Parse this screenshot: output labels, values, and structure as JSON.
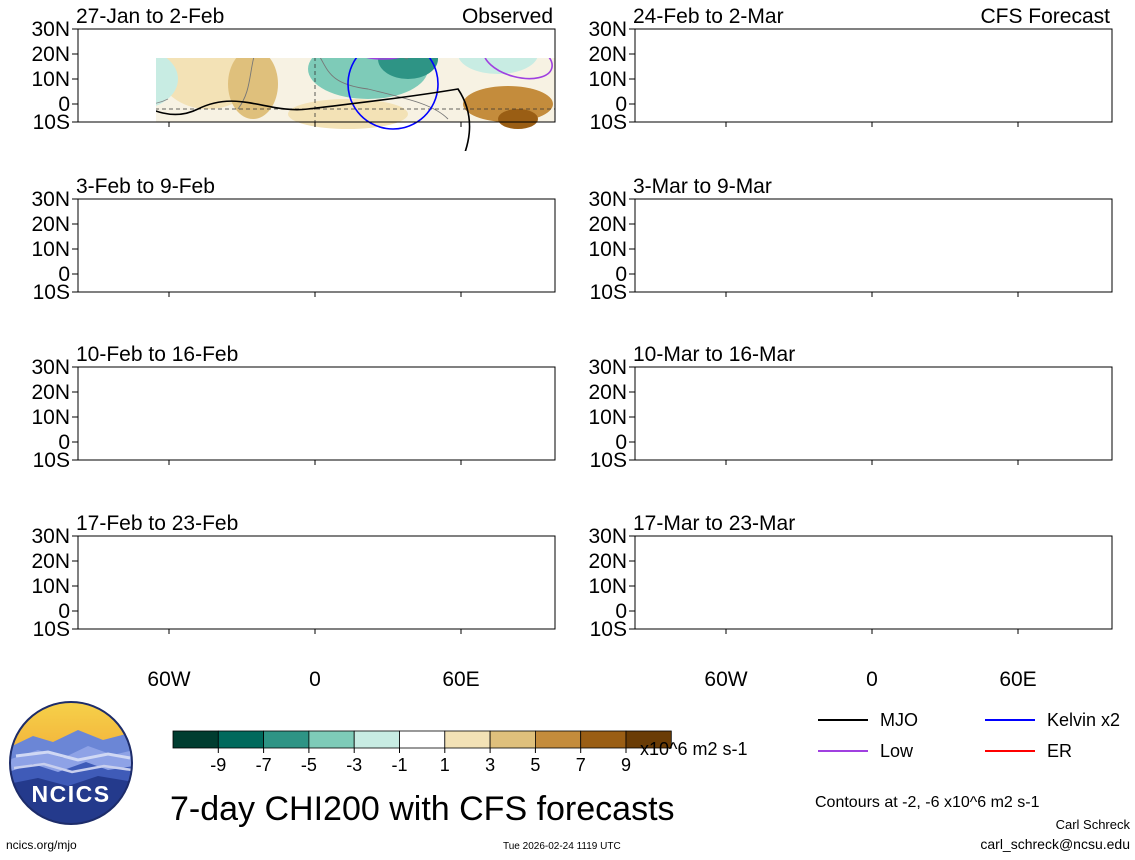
{
  "chart_data": {
    "type": "heatmap",
    "title": "7-day CHI200 with CFS forecasts",
    "variable": "CHI200",
    "units": "x10^6 m2 s-1",
    "contour_note": "Contours at -2, -6 x10^6 m2 s-1",
    "colorbar": {
      "ticks": [
        "-9",
        "-7",
        "-5",
        "-3",
        "-1",
        "1",
        "3",
        "5",
        "7",
        "9"
      ],
      "colors": [
        "#003d30",
        "#00695c",
        "#2e9485",
        "#7ecbb8",
        "#c8ece3",
        "#ffffff",
        "#f3e2b6",
        "#dfc07c",
        "#c48c3c",
        "#9a5e14",
        "#6a3c05"
      ]
    },
    "lat_ticks": [
      "30N",
      "20N",
      "10N",
      "0",
      "10S"
    ],
    "lon_ticks": [
      "60W",
      "0",
      "60E"
    ],
    "columns": [
      {
        "label": "Observed",
        "periods": [
          "27-Jan to 2-Feb",
          "3-Feb to 9-Feb",
          "10-Feb to 16-Feb",
          "17-Feb to 23-Feb"
        ]
      },
      {
        "label": "CFS Forecast",
        "periods": [
          "24-Feb to 2-Mar",
          "3-Mar to 9-Mar",
          "10-Mar to 16-Mar",
          "17-Mar to 23-Mar"
        ]
      }
    ],
    "legend": [
      {
        "name": "MJO",
        "color": "#000000"
      },
      {
        "name": "Kelvin x2",
        "color": "#0000ff"
      },
      {
        "name": "Low",
        "color": "#a040e0"
      },
      {
        "name": "ER",
        "color": "#ff0000"
      }
    ]
  },
  "logo_text": "NCICS",
  "footer": {
    "url": "ncics.org/mjo",
    "timestamp": "Tue 2026-02-24 1119 UTC",
    "author": "Carl Schreck",
    "email": "carl_schreck@ncsu.edu"
  }
}
